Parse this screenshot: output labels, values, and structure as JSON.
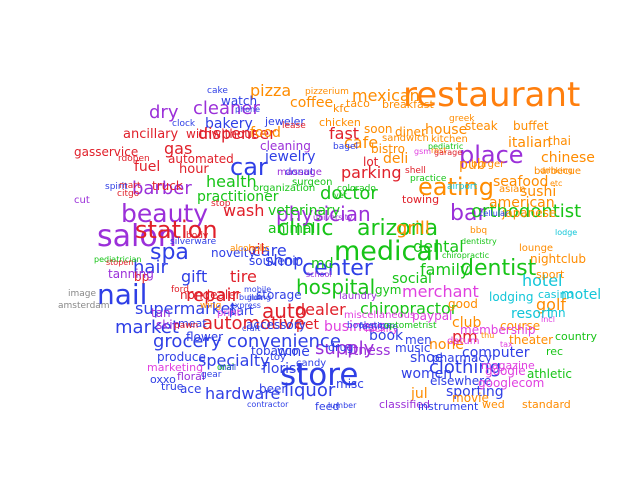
{
  "palette": {
    "blue": "#2f3fe6",
    "orange": "#ff8c00",
    "purple": "#9b30d9",
    "green": "#17c417",
    "red": "#e0202a",
    "cyan": "#12c6d8",
    "magenta": "#e040e0",
    "gray": "#888888"
  },
  "words": [
    {
      "text": "restaurant",
      "color": "#ff7f0e"
    },
    {
      "text": "store",
      "color": "#2f3fe6"
    },
    {
      "text": "salon",
      "color": "#9b30d9"
    },
    {
      "text": "nail",
      "color": "#2f3fe6"
    },
    {
      "text": "medical",
      "color": "#17c417"
    },
    {
      "text": "beauty",
      "color": "#9b30d9"
    },
    {
      "text": "eating",
      "color": "#ff8c00"
    },
    {
      "text": "place",
      "color": "#9b30d9"
    },
    {
      "text": "clinic",
      "color": "#17c417"
    },
    {
      "text": "arizona",
      "color": "#17c417"
    },
    {
      "text": "station",
      "color": "#e0202a"
    },
    {
      "text": "center",
      "color": "#2f3fe6"
    },
    {
      "text": "dentist",
      "color": "#17c417"
    },
    {
      "text": "car",
      "color": "#2f3fe6"
    },
    {
      "text": "auto",
      "color": "#e0202a"
    },
    {
      "text": "spa",
      "color": "#2f3fe6"
    },
    {
      "text": "bar",
      "color": "#9b30d9"
    },
    {
      "text": "doctor",
      "color": "#17c417"
    },
    {
      "text": "physician",
      "color": "#9b30d9"
    },
    {
      "text": "hospital",
      "color": "#17c417"
    },
    {
      "text": "orthodontist",
      "color": "#17c417"
    },
    {
      "text": "liquor",
      "color": "#2f3fe6"
    },
    {
      "text": "supply",
      "color": "#9b30d9"
    },
    {
      "text": "clothing",
      "color": "#2f3fe6"
    },
    {
      "text": "convenience",
      "color": "#2f3fe6"
    },
    {
      "text": "grocery",
      "color": "#2f3fe6"
    },
    {
      "text": "hair",
      "color": "#2f3fe6"
    },
    {
      "text": "barber",
      "color": "#9b30d9"
    },
    {
      "text": "cleaner",
      "color": "#9b30d9"
    },
    {
      "text": "pizza",
      "color": "#ff8c00"
    },
    {
      "text": "mexican",
      "color": "#ff8c00"
    },
    {
      "text": "cafe",
      "color": "#ff8c00"
    },
    {
      "text": "fast",
      "color": "#e0202a"
    },
    {
      "text": "parking",
      "color": "#e0202a"
    },
    {
      "text": "health",
      "color": "#17c417"
    },
    {
      "text": "wash",
      "color": "#e0202a"
    },
    {
      "text": "repair",
      "color": "#e0202a"
    },
    {
      "text": "automotive",
      "color": "#e0202a"
    },
    {
      "text": "market",
      "color": "#2f3fe6"
    },
    {
      "text": "supermarket",
      "color": "#2f3fe6"
    },
    {
      "text": "dealer",
      "color": "#e0202a"
    },
    {
      "text": "chiropractor",
      "color": "#17c417"
    },
    {
      "text": "family",
      "color": "#17c417"
    },
    {
      "text": "hotel",
      "color": "#12c6d8"
    },
    {
      "text": "grill",
      "color": "#ff8c00"
    },
    {
      "text": "dental",
      "color": "#17c417"
    },
    {
      "text": "merchant",
      "color": "#e040e0"
    },
    {
      "text": "gift",
      "color": "#2f3fe6"
    },
    {
      "text": "shop",
      "color": "#2f3fe6"
    },
    {
      "text": "care",
      "color": "#2f3fe6"
    },
    {
      "text": "tire",
      "color": "#e0202a"
    },
    {
      "text": "specialty",
      "color": "#2f3fe6"
    },
    {
      "text": "hardware",
      "color": "#2f3fe6"
    },
    {
      "text": "wine",
      "color": "#2f3fe6"
    },
    {
      "text": "florist",
      "color": "#2f3fe6"
    },
    {
      "text": "book",
      "color": "#2f3fe6"
    },
    {
      "text": "computer",
      "color": "#2f3fe6"
    },
    {
      "text": "pharmacy",
      "color": "#2f3fe6"
    },
    {
      "text": "sporting",
      "color": "#2f3fe6"
    },
    {
      "text": "women",
      "color": "#2f3fe6"
    },
    {
      "text": "shoe",
      "color": "#2f3fe6"
    },
    {
      "text": "jewelry",
      "color": "#2f3fe6"
    },
    {
      "text": "bakery",
      "color": "#2f3fe6"
    },
    {
      "text": "veterinary",
      "color": "#17c417"
    },
    {
      "text": "animal",
      "color": "#17c417"
    },
    {
      "text": "practitioner",
      "color": "#17c417"
    },
    {
      "text": "dry",
      "color": "#9b30d9"
    },
    {
      "text": "dispenser",
      "color": "#e0202a"
    },
    {
      "text": "gas",
      "color": "#e0202a"
    },
    {
      "text": "fuel",
      "color": "#e0202a"
    },
    {
      "text": "hour",
      "color": "#e0202a"
    },
    {
      "text": "ancillary",
      "color": "#e0202a"
    },
    {
      "text": "withwithout",
      "color": "#e0202a"
    },
    {
      "text": "automated",
      "color": "#e0202a"
    },
    {
      "text": "gasservice",
      "color": "#e0202a"
    },
    {
      "text": "truck",
      "color": "#e0202a"
    },
    {
      "text": "bp",
      "color": "#e0202a"
    },
    {
      "text": "nondealer",
      "color": "#e0202a"
    },
    {
      "text": "coffee",
      "color": "#ff8c00"
    },
    {
      "text": "food",
      "color": "#ff8c00"
    },
    {
      "text": "italian",
      "color": "#ff8c00"
    },
    {
      "text": "thai",
      "color": "#ff8c00"
    },
    {
      "text": "chinese",
      "color": "#ff8c00"
    },
    {
      "text": "sushi",
      "color": "#ff8c00"
    },
    {
      "text": "seafood",
      "color": "#ff8c00"
    },
    {
      "text": "american",
      "color": "#ff8c00"
    },
    {
      "text": "japanese",
      "color": "#ff8c00"
    },
    {
      "text": "pub",
      "color": "#ff8c00"
    },
    {
      "text": "house",
      "color": "#ff8c00"
    },
    {
      "text": "steak",
      "color": "#ff8c00"
    },
    {
      "text": "buffet",
      "color": "#ff8c00"
    },
    {
      "text": "bistro",
      "color": "#ff8c00"
    },
    {
      "text": "diner",
      "color": "#ff8c00"
    },
    {
      "text": "soon",
      "color": "#ff8c00"
    },
    {
      "text": "deli",
      "color": "#ff8c00"
    },
    {
      "text": "lot",
      "color": "#e0202a"
    },
    {
      "text": "golf",
      "color": "#ff8c00"
    },
    {
      "text": "motel",
      "color": "#12c6d8"
    },
    {
      "text": "resort",
      "color": "#12c6d8"
    },
    {
      "text": "inn",
      "color": "#12c6d8"
    },
    {
      "text": "lodging",
      "color": "#12c6d8"
    },
    {
      "text": "club",
      "color": "#ff8c00"
    },
    {
      "text": "good",
      "color": "#ff8c00"
    },
    {
      "text": "course",
      "color": "#ff8c00"
    },
    {
      "text": "pm",
      "color": "#e0202a"
    },
    {
      "text": "fitness",
      "color": "#9b30d9"
    },
    {
      "text": "men",
      "color": "#2f3fe6"
    },
    {
      "text": "music",
      "color": "#2f3fe6"
    },
    {
      "text": "none",
      "color": "#ff8c00"
    },
    {
      "text": "jul",
      "color": "#ff8c00"
    },
    {
      "text": "elsewhere",
      "color": "#2f3fe6"
    },
    {
      "text": "misc",
      "color": "#2f3fe6"
    },
    {
      "text": "beer",
      "color": "#2f3fe6"
    },
    {
      "text": "tobacco",
      "color": "#2f3fe6"
    },
    {
      "text": "business",
      "color": "#e040e0"
    },
    {
      "text": "social",
      "color": "#17c417"
    },
    {
      "text": "md",
      "color": "#17c417"
    },
    {
      "text": "gym",
      "color": "#17c417"
    },
    {
      "text": "pet",
      "color": "#e0202a"
    },
    {
      "text": "storage",
      "color": "#2f3fe6"
    },
    {
      "text": "accessory",
      "color": "#2f3fe6"
    },
    {
      "text": "part",
      "color": "#2f3fe6"
    },
    {
      "text": "oil",
      "color": "#e0202a"
    },
    {
      "text": "souvenir",
      "color": "#2f3fe6"
    },
    {
      "text": "novelty",
      "color": "#2f3fe6"
    },
    {
      "text": "tanning",
      "color": "#9b30d9"
    },
    {
      "text": "skin",
      "color": "#9b30d9"
    },
    {
      "text": "tan",
      "color": "#9b30d9"
    },
    {
      "text": "watch",
      "color": "#2f3fe6"
    },
    {
      "text": "jeweler",
      "color": "#2f3fe6"
    },
    {
      "text": "cleaning",
      "color": "#9b30d9"
    },
    {
      "text": "chicken",
      "color": "#ff8c00"
    },
    {
      "text": "breakfast",
      "color": "#ff8c00"
    },
    {
      "text": "kfc",
      "color": "#ff8c00"
    },
    {
      "text": "taco",
      "color": "#ff8c00"
    },
    {
      "text": "produce",
      "color": "#2f3fe6"
    },
    {
      "text": "floral",
      "color": "#9b30d9"
    },
    {
      "text": "flower",
      "color": "#2f3fe6"
    },
    {
      "text": "meat",
      "color": "#2f3fe6"
    },
    {
      "text": "oxxo",
      "color": "#2f3fe6"
    },
    {
      "text": "ace",
      "color": "#2f3fe6"
    },
    {
      "text": "true",
      "color": "#2f3fe6"
    },
    {
      "text": "marketing",
      "color": "#e040e0"
    },
    {
      "text": "google",
      "color": "#e040e0"
    },
    {
      "text": "googlecom",
      "color": "#e040e0"
    },
    {
      "text": "movie",
      "color": "#ff8c00"
    },
    {
      "text": "theater",
      "color": "#ff8c00"
    },
    {
      "text": "athletic",
      "color": "#17c417"
    },
    {
      "text": "classified",
      "color": "#9b30d9"
    },
    {
      "text": "instrument",
      "color": "#2f3fe6"
    },
    {
      "text": "wed",
      "color": "#ff8c00"
    },
    {
      "text": "standard",
      "color": "#ff8c00"
    },
    {
      "text": "feed",
      "color": "#2f3fe6"
    },
    {
      "text": "nightclub",
      "color": "#ff8c00"
    },
    {
      "text": "sport",
      "color": "#ff8c00"
    },
    {
      "text": "casino",
      "color": "#12c6d8"
    },
    {
      "text": "membership",
      "color": "#e040e0"
    },
    {
      "text": "country",
      "color": "#17c417"
    },
    {
      "text": "rec",
      "color": "#17c417"
    },
    {
      "text": "magazine",
      "color": "#e040e0"
    },
    {
      "text": "paypal",
      "color": "#e040e0"
    },
    {
      "text": "miscellaneous",
      "color": "#e040e0"
    },
    {
      "text": "drug",
      "color": "#2f3fe6"
    },
    {
      "text": "candy",
      "color": "#2f3fe6"
    },
    {
      "text": "toy",
      "color": "#2f3fe6"
    },
    {
      "text": "print",
      "color": "#e040e0"
    },
    {
      "text": "facility",
      "color": "#e040e0"
    },
    {
      "text": "datum",
      "color": "#e040e0"
    },
    {
      "text": "image",
      "color": "#888888"
    },
    {
      "text": "amsterdam",
      "color": "#888888"
    },
    {
      "text": "cut",
      "color": "#9b30d9"
    },
    {
      "text": "cake",
      "color": "#2f3fe6"
    },
    {
      "text": "pizzerium",
      "color": "#ff8c00"
    },
    {
      "text": "greek",
      "color": "#ff8c00"
    },
    {
      "text": "barbecue",
      "color": "#ff8c00"
    },
    {
      "text": "asian",
      "color": "#ff8c00"
    },
    {
      "text": "lounge",
      "color": "#ff8c00"
    },
    {
      "text": "bbq",
      "color": "#ff8c00"
    },
    {
      "text": "kitchen",
      "color": "#ff8c00"
    },
    {
      "text": "burger",
      "color": "#ff8c00"
    },
    {
      "text": "sandwich",
      "color": "#ff8c00"
    },
    {
      "text": "bagel",
      "color": "#2f3fe6"
    },
    {
      "text": "donut",
      "color": "#2f3fe6"
    },
    {
      "text": "massage",
      "color": "#9b30d9"
    },
    {
      "text": "surgeon",
      "color": "#17c417"
    },
    {
      "text": "organization",
      "color": "#17c417"
    },
    {
      "text": "towing",
      "color": "#e0202a"
    },
    {
      "text": "laundry",
      "color": "#9b30d9"
    },
    {
      "text": "clock",
      "color": "#2f3fe6"
    },
    {
      "text": "lease",
      "color": "#e0202a"
    },
    {
      "text": "stop",
      "color": "#e0202a"
    },
    {
      "text": "mart",
      "color": "#e0202a"
    },
    {
      "text": "citgo",
      "color": "#e0202a"
    },
    {
      "text": "body",
      "color": "#e0202a"
    },
    {
      "text": "pawn",
      "color": "#e0202a"
    },
    {
      "text": "ford",
      "color": "#e0202a"
    },
    {
      "text": "alcoholic",
      "color": "#ff8c00"
    },
    {
      "text": "drinking",
      "color": "#ff8c00"
    },
    {
      "text": "etc",
      "color": "#ff8c00"
    },
    {
      "text": "lodge",
      "color": "#12c6d8"
    },
    {
      "text": "tax",
      "color": "#e040e0"
    },
    {
      "text": "incl",
      "color": "#e040e0"
    },
    {
      "text": "thu",
      "color": "#ff8c00"
    },
    {
      "text": "furniture",
      "color": "#2f3fe6"
    },
    {
      "text": "bookstore",
      "color": "#2f3fe6"
    },
    {
      "text": "optometrist",
      "color": "#17c417"
    },
    {
      "text": "colorado",
      "color": "#17c417"
    },
    {
      "text": "practice",
      "color": "#17c417"
    },
    {
      "text": "chiropractic",
      "color": "#17c417"
    },
    {
      "text": "dentistry",
      "color": "#17c417"
    },
    {
      "text": "pediatric",
      "color": "#17c417"
    },
    {
      "text": "airport",
      "color": "#12c6d8"
    },
    {
      "text": "rest",
      "color": "#ff8c00"
    },
    {
      "text": "garage",
      "color": "#e0202a"
    },
    {
      "text": "oral",
      "color": "#17c417"
    },
    {
      "text": "mall",
      "color": "#2f3fe6"
    },
    {
      "text": "contractor",
      "color": "#2f3fe6"
    },
    {
      "text": "lumber",
      "color": "#2f3fe6"
    },
    {
      "text": "spirit",
      "color": "#2f3fe6"
    },
    {
      "text": "rdopen",
      "color": "#e0202a"
    },
    {
      "text": "shell",
      "color": "#e0202a"
    },
    {
      "text": "university",
      "color": "#9b30d9"
    },
    {
      "text": "vet",
      "color": "#17c417"
    },
    {
      "text": "school",
      "color": "#9b30d9"
    },
    {
      "text": "gsm",
      "color": "#e040e0"
    },
    {
      "text": "wing",
      "color": "#ff8c00"
    },
    {
      "text": "express",
      "color": "#2f3fe6"
    },
    {
      "text": "craft",
      "color": "#2f3fe6"
    },
    {
      "text": "gear",
      "color": "#2f3fe6"
    },
    {
      "text": "building",
      "color": "#2f3fe6"
    },
    {
      "text": "gun",
      "color": "#2f3fe6"
    },
    {
      "text": "mobile",
      "color": "#2f3fe6"
    },
    {
      "text": "phone",
      "color": "#2f3fe6"
    },
    {
      "text": "cellular",
      "color": "#2f3fe6"
    },
    {
      "text": "silverware",
      "color": "#2f3fe6"
    },
    {
      "text": "pediatrician",
      "color": "#17c417"
    },
    {
      "text": "stopen",
      "color": "#e0202a"
    },
    {
      "text": "pennsylvania",
      "color": "#888888"
    },
    {
      "text": "hallmark",
      "color": "#888888"
    }
  ]
}
